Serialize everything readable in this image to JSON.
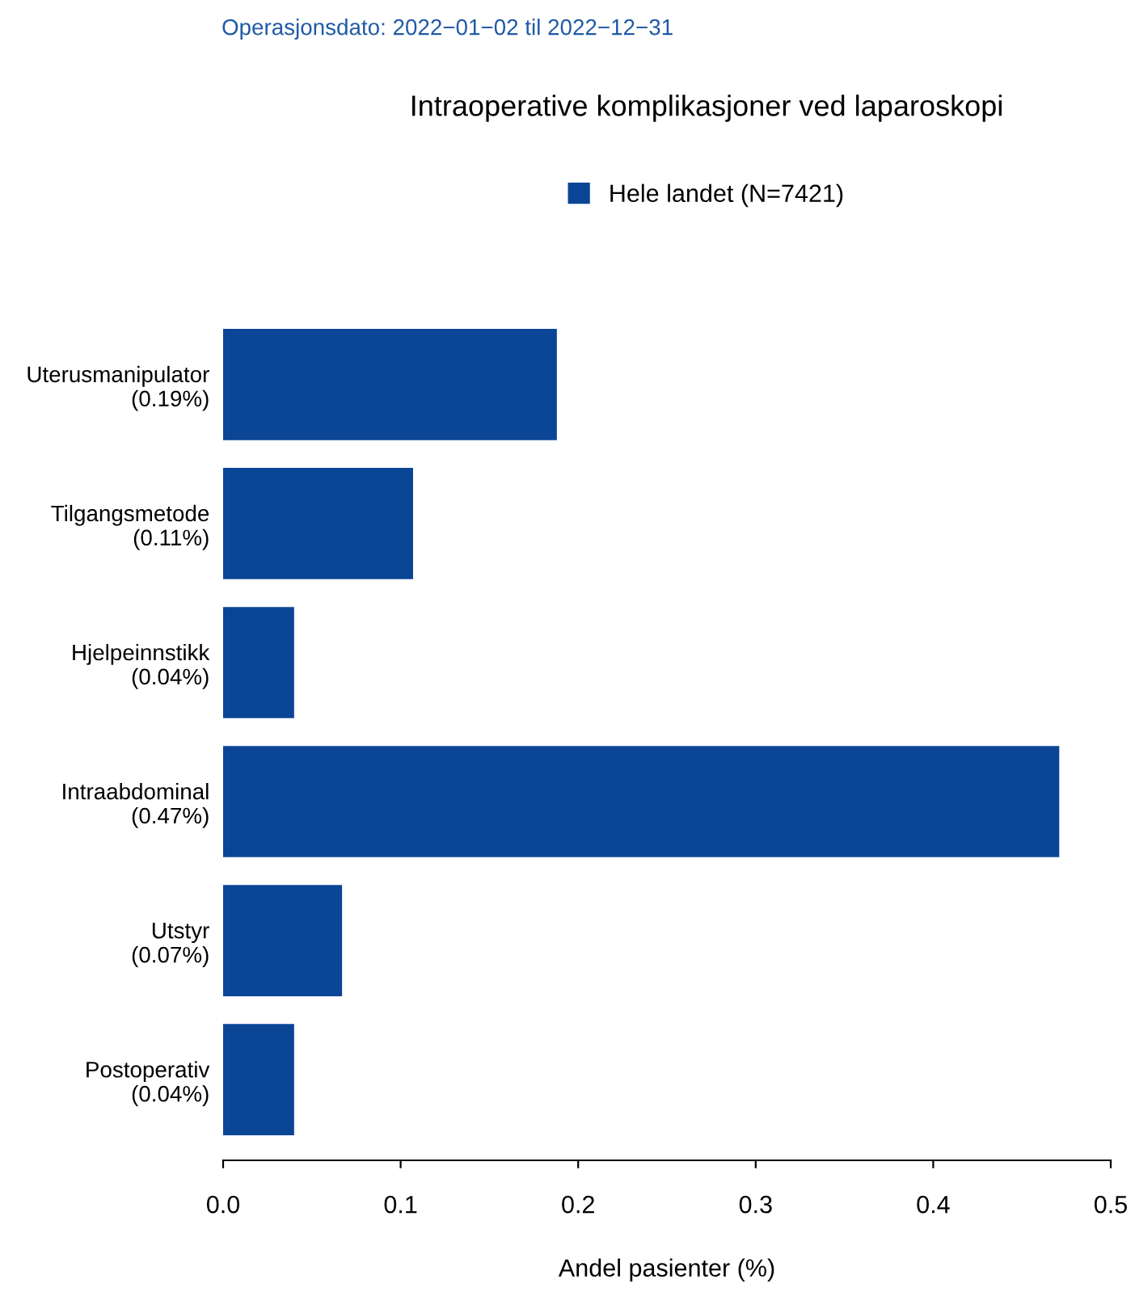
{
  "chart_data": {
    "type": "bar",
    "orientation": "horizontal",
    "title": "Intraoperative komplikasjoner ved laparoskopi",
    "subtitle": "Operasjonsdato: 2022−01−02 til 2022−12−31",
    "xlabel": "Andel pasienter (%)",
    "categories": [
      "Uterusmanipulator\n(0.19%)",
      "Tilgangsmetode\n(0.11%)",
      "Hjelpeinnstikk\n(0.04%)",
      "Intraabdominal\n(0.47%)",
      "Utstyr\n(0.07%)",
      "Postoperativ\n(0.04%)"
    ],
    "series": [
      {
        "name": "Hele landet (N=7421)",
        "color": "#0b4596",
        "values": [
          0.188,
          0.107,
          0.04,
          0.471,
          0.067,
          0.04
        ]
      }
    ],
    "xlim": [
      0,
      0.5
    ],
    "xticks": [
      {
        "value": 0,
        "label": "0.0"
      },
      0.1,
      0.2,
      0.3,
      0.4,
      0.5
    ],
    "grid": false,
    "legend": "top"
  }
}
